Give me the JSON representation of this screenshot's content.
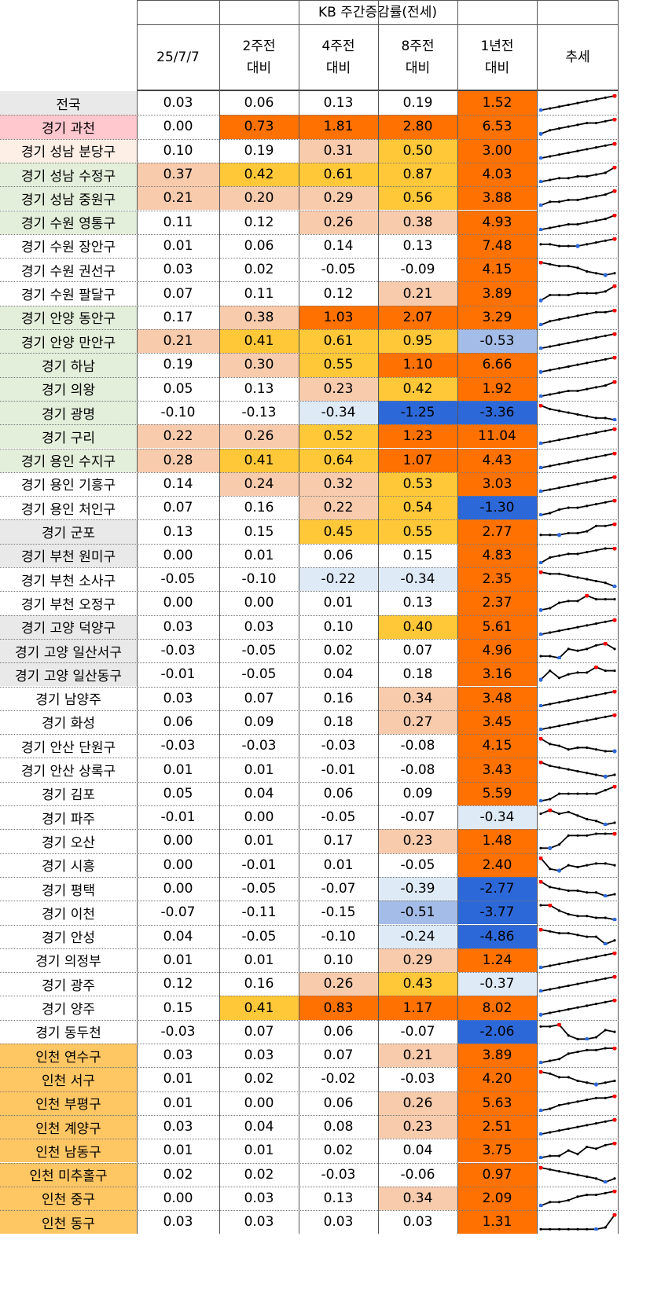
{
  "table": {
    "title": "KB 주간증감률(전세)",
    "headers": [
      "25/7/7",
      "2주전\n대비",
      "4주전\n대비",
      "8주전\n대비",
      "1년전\n대비",
      "추세"
    ],
    "rows": [
      {
        "region": "전국",
        "values": [
          "0.03",
          "0.06",
          "0.13",
          "0.19",
          "1.52"
        ]
      },
      {
        "region": "경기 과천",
        "values": [
          "0.00",
          "0.73",
          "1.81",
          "2.80",
          "6.53"
        ]
      },
      {
        "region": "경기 성남 분당구",
        "values": [
          "0.10",
          "0.19",
          "0.31",
          "0.50",
          "3.00"
        ]
      },
      {
        "region": "경기 성남 수정구",
        "values": [
          "0.37",
          "0.42",
          "0.61",
          "0.87",
          "4.03"
        ]
      },
      {
        "region": "경기 성남 중원구",
        "values": [
          "0.21",
          "0.20",
          "0.29",
          "0.56",
          "3.88"
        ]
      },
      {
        "region": "경기 수원 영통구",
        "values": [
          "0.11",
          "0.12",
          "0.26",
          "0.38",
          "4.93"
        ]
      },
      {
        "region": "경기 수원 장안구",
        "values": [
          "0.01",
          "0.06",
          "0.14",
          "0.13",
          "7.48"
        ]
      },
      {
        "region": "경기 수원 권선구",
        "values": [
          "0.03",
          "0.02",
          "-0.05",
          "-0.09",
          "4.15"
        ]
      },
      {
        "region": "경기 수원 팔달구",
        "values": [
          "0.07",
          "0.11",
          "0.12",
          "0.21",
          "3.89"
        ]
      },
      {
        "region": "경기 안양 동안구",
        "values": [
          "0.17",
          "0.38",
          "1.03",
          "2.07",
          "3.29"
        ]
      },
      {
        "region": "경기 안양 만안구",
        "values": [
          "0.21",
          "0.41",
          "0.61",
          "0.95",
          "-0.53"
        ]
      },
      {
        "region": "경기 하남",
        "values": [
          "0.19",
          "0.30",
          "0.55",
          "1.10",
          "6.66"
        ]
      },
      {
        "region": "경기 의왕",
        "values": [
          "0.05",
          "0.13",
          "0.23",
          "0.42",
          "1.92"
        ]
      },
      {
        "region": "경기 광명",
        "values": [
          "-0.10",
          "-0.13",
          "-0.34",
          "-1.25",
          "-3.36"
        ]
      },
      {
        "region": "경기 구리",
        "values": [
          "0.22",
          "0.26",
          "0.52",
          "1.23",
          "11.04"
        ]
      },
      {
        "region": "경기 용인 수지구",
        "values": [
          "0.28",
          "0.41",
          "0.64",
          "1.07",
          "4.43"
        ]
      },
      {
        "region": "경기 용인 기흥구",
        "values": [
          "0.14",
          "0.24",
          "0.32",
          "0.53",
          "3.03"
        ]
      },
      {
        "region": "경기 용인 처인구",
        "values": [
          "0.07",
          "0.16",
          "0.22",
          "0.54",
          "-1.30"
        ]
      },
      {
        "region": "경기 군포",
        "values": [
          "0.13",
          "0.15",
          "0.45",
          "0.55",
          "2.77"
        ]
      },
      {
        "region": "경기 부천 원미구",
        "values": [
          "0.00",
          "0.01",
          "0.06",
          "0.15",
          "4.83"
        ]
      },
      {
        "region": "경기 부천 소사구",
        "values": [
          "-0.05",
          "-0.10",
          "-0.22",
          "-0.34",
          "2.35"
        ]
      },
      {
        "region": "경기 부천 오정구",
        "values": [
          "0.00",
          "0.00",
          "0.01",
          "0.13",
          "2.37"
        ]
      },
      {
        "region": "경기 고양 덕양구",
        "values": [
          "0.03",
          "0.03",
          "0.10",
          "0.40",
          "5.61"
        ]
      },
      {
        "region": "경기 고양 일산서구",
        "values": [
          "-0.03",
          "-0.05",
          "0.02",
          "0.07",
          "4.96"
        ]
      },
      {
        "region": "경기 고양 일산동구",
        "values": [
          "-0.01",
          "-0.05",
          "0.04",
          "0.18",
          "3.16"
        ]
      },
      {
        "region": "경기 남양주",
        "values": [
          "0.03",
          "0.07",
          "0.16",
          "0.34",
          "3.48"
        ]
      },
      {
        "region": "경기 화성",
        "values": [
          "0.06",
          "0.09",
          "0.18",
          "0.27",
          "3.45"
        ]
      },
      {
        "region": "경기 안산 단원구",
        "values": [
          "-0.03",
          "-0.03",
          "-0.03",
          "-0.08",
          "4.15"
        ]
      },
      {
        "region": "경기 안산 상록구",
        "values": [
          "0.01",
          "0.01",
          "-0.01",
          "-0.08",
          "3.43"
        ]
      },
      {
        "region": "경기 김포",
        "values": [
          "0.05",
          "0.04",
          "0.06",
          "0.09",
          "5.59"
        ]
      },
      {
        "region": "경기 파주",
        "values": [
          "-0.01",
          "0.00",
          "-0.05",
          "-0.07",
          "-0.34"
        ]
      },
      {
        "region": "경기 오산",
        "values": [
          "0.00",
          "0.01",
          "0.17",
          "0.23",
          "1.48"
        ]
      },
      {
        "region": "경기 시흥",
        "values": [
          "0.00",
          "-0.01",
          "0.01",
          "-0.05",
          "2.40"
        ]
      },
      {
        "region": "경기 평택",
        "values": [
          "0.00",
          "-0.05",
          "-0.07",
          "-0.39",
          "-2.77"
        ]
      },
      {
        "region": "경기 이천",
        "values": [
          "-0.07",
          "-0.11",
          "-0.15",
          "-0.51",
          "-3.77"
        ]
      },
      {
        "region": "경기 안성",
        "values": [
          "0.04",
          "-0.05",
          "-0.10",
          "-0.24",
          "-4.86"
        ]
      },
      {
        "region": "경기 의정부",
        "values": [
          "0.01",
          "0.01",
          "0.10",
          "0.29",
          "1.24"
        ]
      },
      {
        "region": "경기 광주",
        "values": [
          "0.12",
          "0.16",
          "0.26",
          "0.43",
          "-0.37"
        ]
      },
      {
        "region": "경기 양주",
        "values": [
          "0.15",
          "0.41",
          "0.83",
          "1.17",
          "8.02"
        ]
      },
      {
        "region": "경기 동두천",
        "values": [
          "-0.03",
          "0.07",
          "0.06",
          "-0.07",
          "-2.06"
        ]
      },
      {
        "region": "인천 연수구",
        "values": [
          "0.03",
          "0.03",
          "0.07",
          "0.21",
          "3.89"
        ]
      },
      {
        "region": "인천 서구",
        "values": [
          "0.01",
          "0.02",
          "-0.02",
          "-0.03",
          "4.20"
        ]
      },
      {
        "region": "인천 부평구",
        "values": [
          "0.01",
          "0.00",
          "0.06",
          "0.26",
          "5.63"
        ]
      },
      {
        "region": "인천 계양구",
        "values": [
          "0.03",
          "0.04",
          "0.08",
          "0.23",
          "2.51"
        ]
      },
      {
        "region": "인천 남동구",
        "values": [
          "0.01",
          "0.01",
          "0.02",
          "0.04",
          "3.75"
        ]
      },
      {
        "region": "인천 미추홀구",
        "values": [
          "0.02",
          "0.02",
          "-0.03",
          "-0.06",
          "0.97"
        ]
      },
      {
        "region": "인천 중구",
        "values": [
          "0.00",
          "0.03",
          "0.13",
          "0.34",
          "2.09"
        ]
      },
      {
        "region": "인천 동구",
        "values": [
          "0.03",
          "0.03",
          "0.03",
          "0.03",
          "1.31"
        ]
      }
    ]
  },
  "colors": {
    "region_bg": [
      "#e9e9e9",
      "#ffc7ce",
      "#fdeee6",
      "#e3eedb",
      "#e3eedb",
      "#e3eedb",
      "#ffffff",
      "#ffffff",
      "#ffffff",
      "#e3eedb",
      "#e3eedb",
      "#e3eedb",
      "#e3eedb",
      "#e3eedb",
      "#e3eedb",
      "#e3eedb",
      "#ffffff",
      "#ffffff",
      "#e9e9e9",
      "#e9e9e9",
      "#ffffff",
      "#ffffff",
      "#e9e9e9",
      "#e9e9e9",
      "#e9e9e9",
      "#ffffff",
      "#ffffff",
      "#ffffff",
      "#ffffff",
      "#ffffff",
      "#ffffff",
      "#ffffff",
      "#ffffff",
      "#ffffff",
      "#ffffff",
      "#ffffff",
      "#ffffff",
      "#ffffff",
      "#ffffff",
      "#ffffff",
      "#ffc664",
      "#ffc664",
      "#ffc664",
      "#ffc664",
      "#ffc664",
      "#ffc664",
      "#ffc664",
      "#ffc664"
    ],
    "scale": {
      "strong_orange": "#ff7100",
      "orange": "#ff8c26",
      "yellow": "#ffc839",
      "peach": "#f8cbad",
      "white": "#ffffff",
      "light_blue": "#dfeaf7",
      "mid_blue": "#a4bde8",
      "blue": "#2d68d8"
    },
    "spark_line": "#000000",
    "spark_high": "#ff0000",
    "spark_low": "#2d68d8"
  },
  "trends": [
    [
      0,
      1,
      2,
      3,
      4,
      5,
      6,
      7,
      8
    ],
    [
      0,
      2,
      3,
      4,
      5,
      6,
      6,
      7,
      8
    ],
    [
      0,
      1,
      2,
      3,
      4,
      5,
      6,
      7,
      8
    ],
    [
      0,
      1,
      2,
      2,
      3,
      3,
      4,
      5,
      8
    ],
    [
      0,
      2,
      2,
      3,
      3,
      4,
      5,
      6,
      8
    ],
    [
      0,
      1,
      2,
      3,
      3,
      4,
      5,
      6,
      8
    ],
    [
      5,
      5,
      4,
      4,
      4,
      5,
      6,
      7,
      8
    ],
    [
      8,
      7,
      6,
      6,
      5,
      3,
      2,
      1,
      2
    ],
    [
      0,
      3,
      3,
      3,
      4,
      4,
      4,
      5,
      8
    ],
    [
      0,
      2,
      3,
      4,
      5,
      6,
      7,
      7,
      8
    ],
    [
      0,
      1,
      2,
      3,
      4,
      5,
      6,
      7,
      8
    ],
    [
      0,
      1,
      2,
      3,
      4,
      5,
      6,
      7,
      8
    ],
    [
      0,
      1,
      2,
      3,
      3,
      4,
      5,
      6,
      8
    ],
    [
      8,
      6,
      5,
      4,
      3,
      2,
      1,
      1,
      0
    ],
    [
      0,
      1,
      2,
      3,
      4,
      5,
      6,
      7,
      8
    ],
    [
      0,
      1,
      2,
      3,
      4,
      5,
      6,
      7,
      8
    ],
    [
      0,
      1,
      2,
      3,
      4,
      5,
      6,
      7,
      8
    ],
    [
      0,
      1,
      3,
      4,
      4,
      5,
      6,
      7,
      8
    ],
    [
      2,
      2,
      2,
      3,
      3,
      4,
      7,
      7,
      8
    ],
    [
      0,
      3,
      4,
      5,
      5,
      6,
      7,
      8,
      8
    ],
    [
      8,
      7,
      7,
      6,
      5,
      4,
      3,
      2,
      0
    ],
    [
      0,
      1,
      4,
      5,
      5,
      8,
      6,
      6,
      6
    ],
    [
      0,
      1,
      2,
      3,
      4,
      5,
      6,
      7,
      8
    ],
    [
      1,
      1,
      0,
      5,
      4,
      5,
      7,
      8,
      5
    ],
    [
      1,
      6,
      2,
      4,
      5,
      5,
      8,
      6,
      6
    ],
    [
      0,
      1,
      2,
      3,
      4,
      5,
      6,
      7,
      8
    ],
    [
      0,
      1,
      2,
      3,
      4,
      5,
      6,
      7,
      8
    ],
    [
      8,
      5,
      4,
      2,
      3,
      3,
      2,
      1,
      1
    ],
    [
      8,
      6,
      5,
      4,
      3,
      2,
      1,
      0,
      1
    ],
    [
      0,
      1,
      4,
      4,
      4,
      4,
      4,
      6,
      8
    ],
    [
      6,
      8,
      6,
      7,
      5,
      3,
      2,
      0,
      1
    ],
    [
      0,
      0,
      2,
      7,
      7,
      7,
      8,
      8,
      8
    ],
    [
      8,
      2,
      1,
      4,
      3,
      4,
      5,
      5,
      4
    ],
    [
      8,
      5,
      4,
      3,
      3,
      2,
      2,
      0,
      1
    ],
    [
      8,
      8,
      5,
      3,
      2,
      2,
      1,
      1,
      0
    ],
    [
      8,
      7,
      6,
      6,
      5,
      4,
      4,
      0,
      2
    ],
    [
      0,
      1,
      2,
      3,
      4,
      5,
      6,
      7,
      8
    ],
    [
      0,
      1,
      2,
      3,
      4,
      5,
      6,
      7,
      8
    ],
    [
      0,
      1,
      2,
      3,
      4,
      5,
      6,
      7,
      8
    ],
    [
      7,
      7,
      8,
      2,
      0,
      0,
      1,
      5,
      4
    ],
    [
      0,
      1,
      2,
      5,
      6,
      7,
      7,
      8,
      8
    ],
    [
      8,
      7,
      5,
      5,
      3,
      2,
      1,
      2,
      3
    ],
    [
      0,
      1,
      3,
      4,
      5,
      6,
      7,
      7,
      8
    ],
    [
      0,
      1,
      2,
      3,
      4,
      5,
      6,
      7,
      8
    ],
    [
      0,
      1,
      1,
      4,
      2,
      6,
      5,
      7,
      8
    ],
    [
      8,
      7,
      6,
      5,
      4,
      3,
      2,
      0,
      2
    ],
    [
      0,
      2,
      2,
      3,
      5,
      6,
      6,
      7,
      8
    ],
    [
      0,
      0,
      0,
      0,
      0,
      0,
      0,
      1,
      8
    ]
  ]
}
